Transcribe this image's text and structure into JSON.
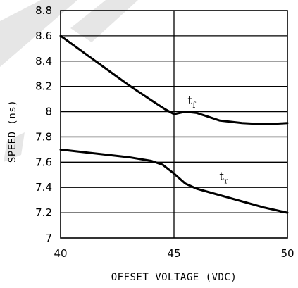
{
  "chart_data": {
    "type": "line",
    "xlabel": "OFFSET VOLTAGE (VDC)",
    "ylabel": "SPEED (ns)",
    "xlim": [
      40,
      50
    ],
    "ylim": [
      7.0,
      8.8
    ],
    "x_ticks": [
      40,
      45,
      50
    ],
    "y_ticks": [
      7.0,
      7.2,
      7.4,
      7.6,
      7.8,
      8.0,
      8.2,
      8.4,
      8.6,
      8.8
    ],
    "x_tick_labels": [
      "40",
      "45",
      "50"
    ],
    "y_tick_labels": [
      "7",
      "7.2",
      "7.4",
      "7.6",
      "7.8",
      "8",
      "8.2",
      "8.4",
      "8.6",
      "8.8"
    ],
    "grid": true,
    "series": [
      {
        "label_main": "t",
        "label_sub": "f",
        "label_at": [
          45.6,
          8.06
        ],
        "x": [
          40.0,
          41.0,
          42.0,
          43.0,
          44.0,
          44.6,
          45.0,
          45.5,
          46.0,
          46.5,
          47.0,
          48.0,
          49.0,
          50.0
        ],
        "y": [
          8.6,
          8.47,
          8.34,
          8.21,
          8.09,
          8.02,
          7.98,
          8.0,
          7.99,
          7.96,
          7.93,
          7.91,
          7.9,
          7.91
        ]
      },
      {
        "label_main": "t",
        "label_sub": "r",
        "label_at": [
          47.0,
          7.46
        ],
        "x": [
          40.0,
          41.0,
          42.0,
          43.0,
          44.0,
          44.5,
          45.0,
          45.5,
          46.0,
          47.0,
          48.0,
          49.0,
          50.0
        ],
        "y": [
          7.7,
          7.68,
          7.66,
          7.64,
          7.61,
          7.58,
          7.51,
          7.43,
          7.39,
          7.34,
          7.29,
          7.24,
          7.2
        ]
      }
    ]
  }
}
